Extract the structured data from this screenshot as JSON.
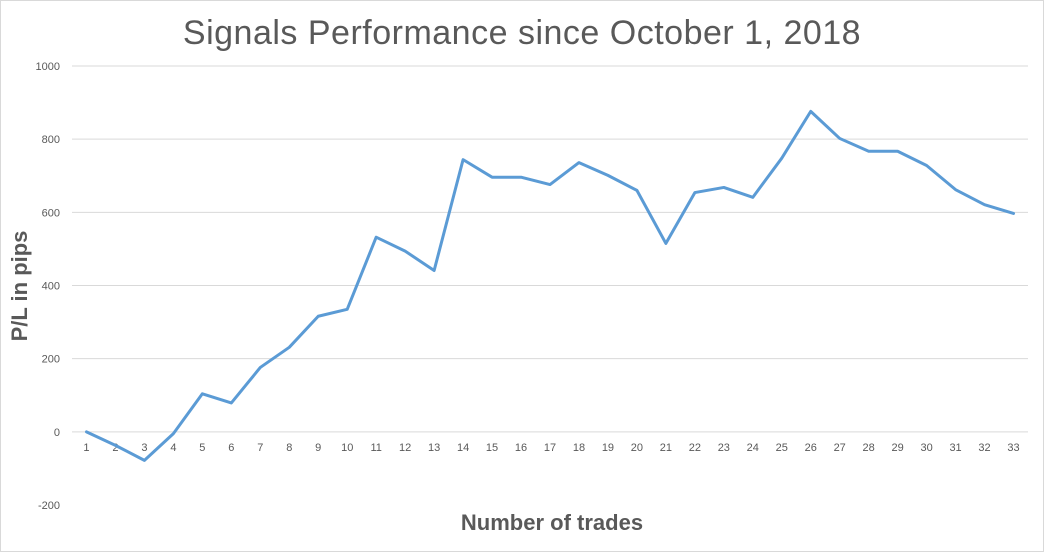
{
  "chart_data": {
    "type": "line",
    "title": "Signals Performance since October 1, 2018",
    "xlabel": "Number of trades",
    "ylabel": "P/L in pips",
    "categories": [
      "1",
      "2",
      "3",
      "4",
      "5",
      "6",
      "7",
      "8",
      "9",
      "10",
      "11",
      "12",
      "13",
      "14",
      "15",
      "16",
      "17",
      "18",
      "19",
      "20",
      "21",
      "22",
      "23",
      "24",
      "25",
      "26",
      "27",
      "28",
      "29",
      "30",
      "31",
      "32",
      "33"
    ],
    "series": [
      {
        "values": [
          0,
          -37,
          -78,
          -5,
          104,
          79,
          176,
          231,
          316,
          335,
          532,
          494,
          441,
          744,
          696,
          696,
          676,
          736,
          701,
          660,
          515,
          654,
          668,
          641,
          748,
          876,
          802,
          767,
          767,
          728,
          662,
          621,
          597
        ]
      }
    ],
    "ylim": [
      -200,
      1000
    ],
    "yticks": [
      -200,
      0,
      200,
      400,
      600,
      800,
      1000
    ],
    "grid": true,
    "legend": "none",
    "colors": {
      "line": "#5b9bd5",
      "grid": "#d9d9d9",
      "text": "#595959"
    }
  }
}
